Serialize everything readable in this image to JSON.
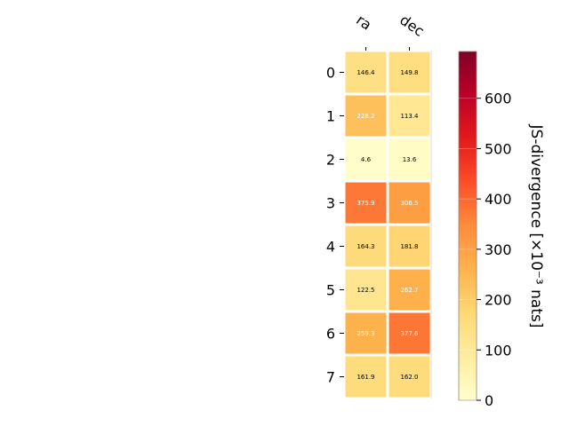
{
  "chart_data": {
    "type": "heatmap",
    "columns": [
      "ra",
      "dec"
    ],
    "rows": [
      "0",
      "1",
      "2",
      "3",
      "4",
      "5",
      "6",
      "7"
    ],
    "values": [
      [
        146.4,
        149.8
      ],
      [
        228.2,
        113.4
      ],
      [
        4.6,
        13.6
      ],
      [
        375.9,
        306.5
      ],
      [
        164.3,
        181.8
      ],
      [
        122.5,
        262.7
      ],
      [
        259.3,
        377.6
      ],
      [
        161.9,
        162.0
      ]
    ],
    "value_labels": [
      [
        "146.4",
        "149.8"
      ],
      [
        "228.2",
        "113.4"
      ],
      [
        "4.6",
        "13.6"
      ],
      [
        "375.9",
        "306.5"
      ],
      [
        "164.3",
        "181.8"
      ],
      [
        "122.5",
        "262.7"
      ],
      [
        "259.3",
        "377.6"
      ],
      [
        "161.9",
        "162.0"
      ]
    ],
    "colorbar": {
      "label": "JS-divergence [×10⁻³ nats]",
      "range": [
        0,
        693
      ],
      "ticks": [
        0,
        100,
        200,
        300,
        400,
        500,
        600
      ],
      "colormap": "YlOrRd"
    }
  }
}
